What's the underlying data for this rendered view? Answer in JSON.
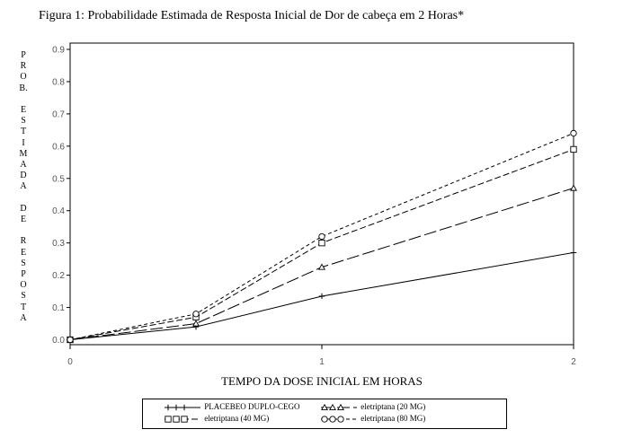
{
  "chart_data": {
    "type": "line",
    "title": "Figura 1: Probabilidade Estimada de Resposta Inicial de Dor de cabeça em 2 Horas*",
    "xlabel": "TEMPO DA DOSE INICIAL EM HORAS",
    "ylabel": "PROB. ESTIMADA DE RESPOSTA",
    "ylabel_letters": [
      "P",
      "R",
      "O",
      "B.",
      "",
      "E",
      "S",
      "T",
      "I",
      "M",
      "A",
      "D",
      "A",
      "",
      "D",
      "E",
      "",
      "R",
      "E",
      "S",
      "P",
      "O",
      "S",
      "T",
      "A"
    ],
    "xlim": [
      0,
      2
    ],
    "ylim": [
      0,
      0.9
    ],
    "x_ticks": [
      0,
      1,
      2
    ],
    "y_ticks": [
      0.0,
      0.1,
      0.2,
      0.3,
      0.4,
      0.5,
      0.6,
      0.7,
      0.8,
      0.9
    ],
    "x_tick_labels": [
      "0",
      "1",
      "2"
    ],
    "y_tick_labels": [
      "0.0",
      "0.1",
      "0.2",
      "0.3",
      "0.4",
      "0.5",
      "0.6",
      "0.7",
      "0.8",
      "0.9"
    ],
    "grid": false,
    "legend_position": "bottom",
    "series": [
      {
        "name": "PLACEBEO DUPLO-CEGO",
        "x": [
          0,
          0.5,
          1,
          2
        ],
        "values": [
          0.0,
          0.04,
          0.135,
          0.27
        ],
        "marker": "plus",
        "dash": "none"
      },
      {
        "name": "eletriptana (20 MG)",
        "x": [
          0,
          0.5,
          1,
          2
        ],
        "values": [
          0.0,
          0.05,
          0.225,
          0.47
        ],
        "marker": "triangle",
        "dash": "14,4"
      },
      {
        "name": "eletriptana (40 MG)",
        "x": [
          0,
          0.5,
          1,
          2
        ],
        "values": [
          0.0,
          0.07,
          0.3,
          0.59
        ],
        "marker": "square",
        "dash": "7,3"
      },
      {
        "name": "eletriptana (80 MG)",
        "x": [
          0,
          0.5,
          1,
          2
        ],
        "values": [
          0.0,
          0.08,
          0.32,
          0.64
        ],
        "marker": "circle",
        "dash": "4,3"
      }
    ]
  }
}
